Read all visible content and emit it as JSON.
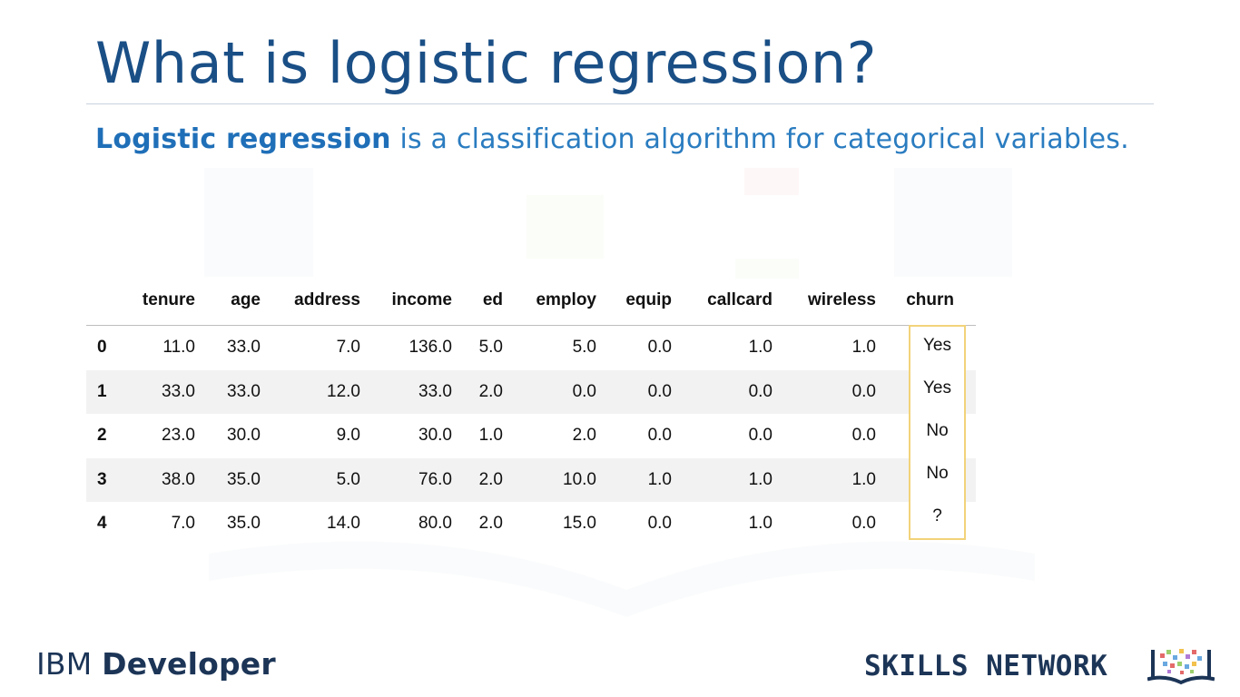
{
  "slide": {
    "title": "What is logistic regression?",
    "subtitle_strong": "Logistic regression",
    "subtitle_rest": " is a classification algorithm for categorical variables."
  },
  "table": {
    "columns": [
      "tenure",
      "age",
      "address",
      "income",
      "ed",
      "employ",
      "equip",
      "callcard",
      "wireless",
      "churn"
    ],
    "rows": [
      {
        "index": "0",
        "tenure": "11.0",
        "age": "33.0",
        "address": "7.0",
        "income": "136.0",
        "ed": "5.0",
        "employ": "5.0",
        "equip": "0.0",
        "callcard": "1.0",
        "wireless": "1.0",
        "churn": "Yes"
      },
      {
        "index": "1",
        "tenure": "33.0",
        "age": "33.0",
        "address": "12.0",
        "income": "33.0",
        "ed": "2.0",
        "employ": "0.0",
        "equip": "0.0",
        "callcard": "0.0",
        "wireless": "0.0",
        "churn": "Yes"
      },
      {
        "index": "2",
        "tenure": "23.0",
        "age": "30.0",
        "address": "9.0",
        "income": "30.0",
        "ed": "1.0",
        "employ": "2.0",
        "equip": "0.0",
        "callcard": "0.0",
        "wireless": "0.0",
        "churn": "No"
      },
      {
        "index": "3",
        "tenure": "38.0",
        "age": "35.0",
        "address": "5.0",
        "income": "76.0",
        "ed": "2.0",
        "employ": "10.0",
        "equip": "1.0",
        "callcard": "1.0",
        "wireless": "1.0",
        "churn": "No"
      },
      {
        "index": "4",
        "tenure": "7.0",
        "age": "35.0",
        "address": "14.0",
        "income": "80.0",
        "ed": "2.0",
        "employ": "15.0",
        "equip": "0.0",
        "callcard": "1.0",
        "wireless": "0.0",
        "churn": "?"
      }
    ],
    "highlight_color": "#f2d37a"
  },
  "footer": {
    "ibm_prefix": "IBM ",
    "ibm_strong": "Developer",
    "skills_network": "SKILLS NETWORK",
    "logo_icon": "skills-network-book-icon"
  },
  "colors": {
    "title": "#1a4f86",
    "subtitle": "#2a7cc0",
    "footer_text": "#1c3557"
  }
}
